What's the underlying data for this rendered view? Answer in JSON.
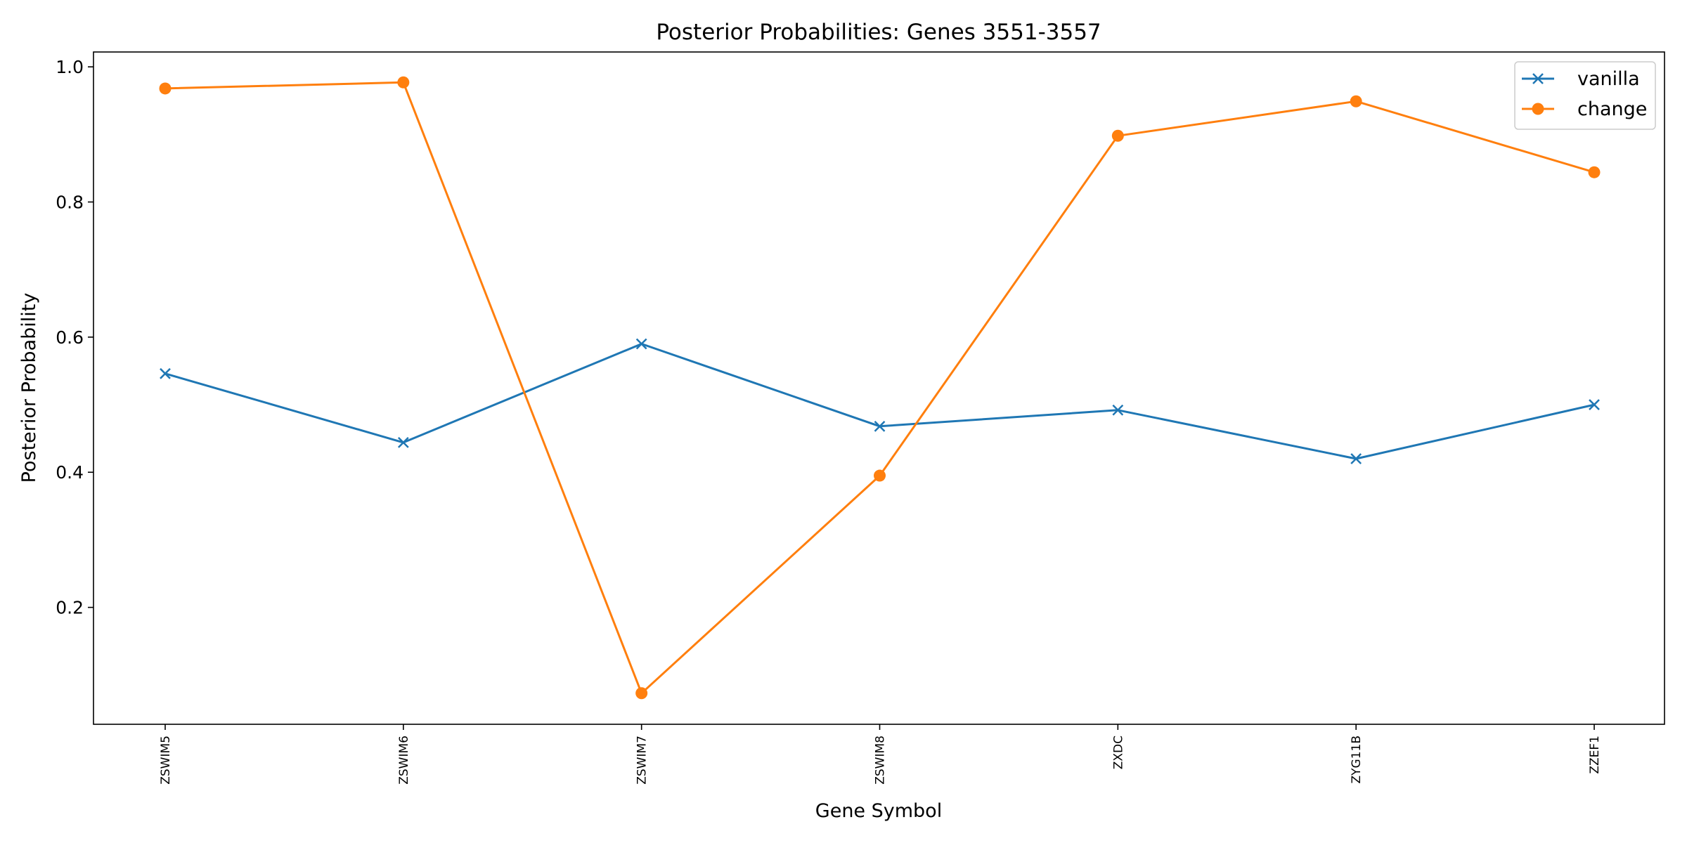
{
  "chart_data": {
    "type": "line",
    "title": "Posterior Probabilities: Genes 3551-3557",
    "xlabel": "Gene Symbol",
    "ylabel": "Posterior Probability",
    "categories": [
      "ZSWIM5",
      "ZSWIM6",
      "ZSWIM7",
      "ZSWIM8",
      "ZXDC",
      "ZYG11B",
      "ZZEF1"
    ],
    "ylim": [
      0.027,
      1.022
    ],
    "yticks": [
      0.2,
      0.4,
      0.6,
      0.8,
      1.0
    ],
    "ytick_labels": [
      "0.2",
      "0.4",
      "0.6",
      "0.8",
      "1.0"
    ],
    "grid": false,
    "legend_position": "top-right",
    "series": [
      {
        "name": "vanilla",
        "color": "#1f77b4",
        "marker": "x",
        "values": [
          0.546,
          0.444,
          0.59,
          0.468,
          0.492,
          0.42,
          0.5
        ]
      },
      {
        "name": "change",
        "color": "#ff7f0e",
        "marker": "circle",
        "values": [
          0.968,
          0.977,
          0.073,
          0.395,
          0.898,
          0.949,
          0.844
        ]
      }
    ]
  }
}
